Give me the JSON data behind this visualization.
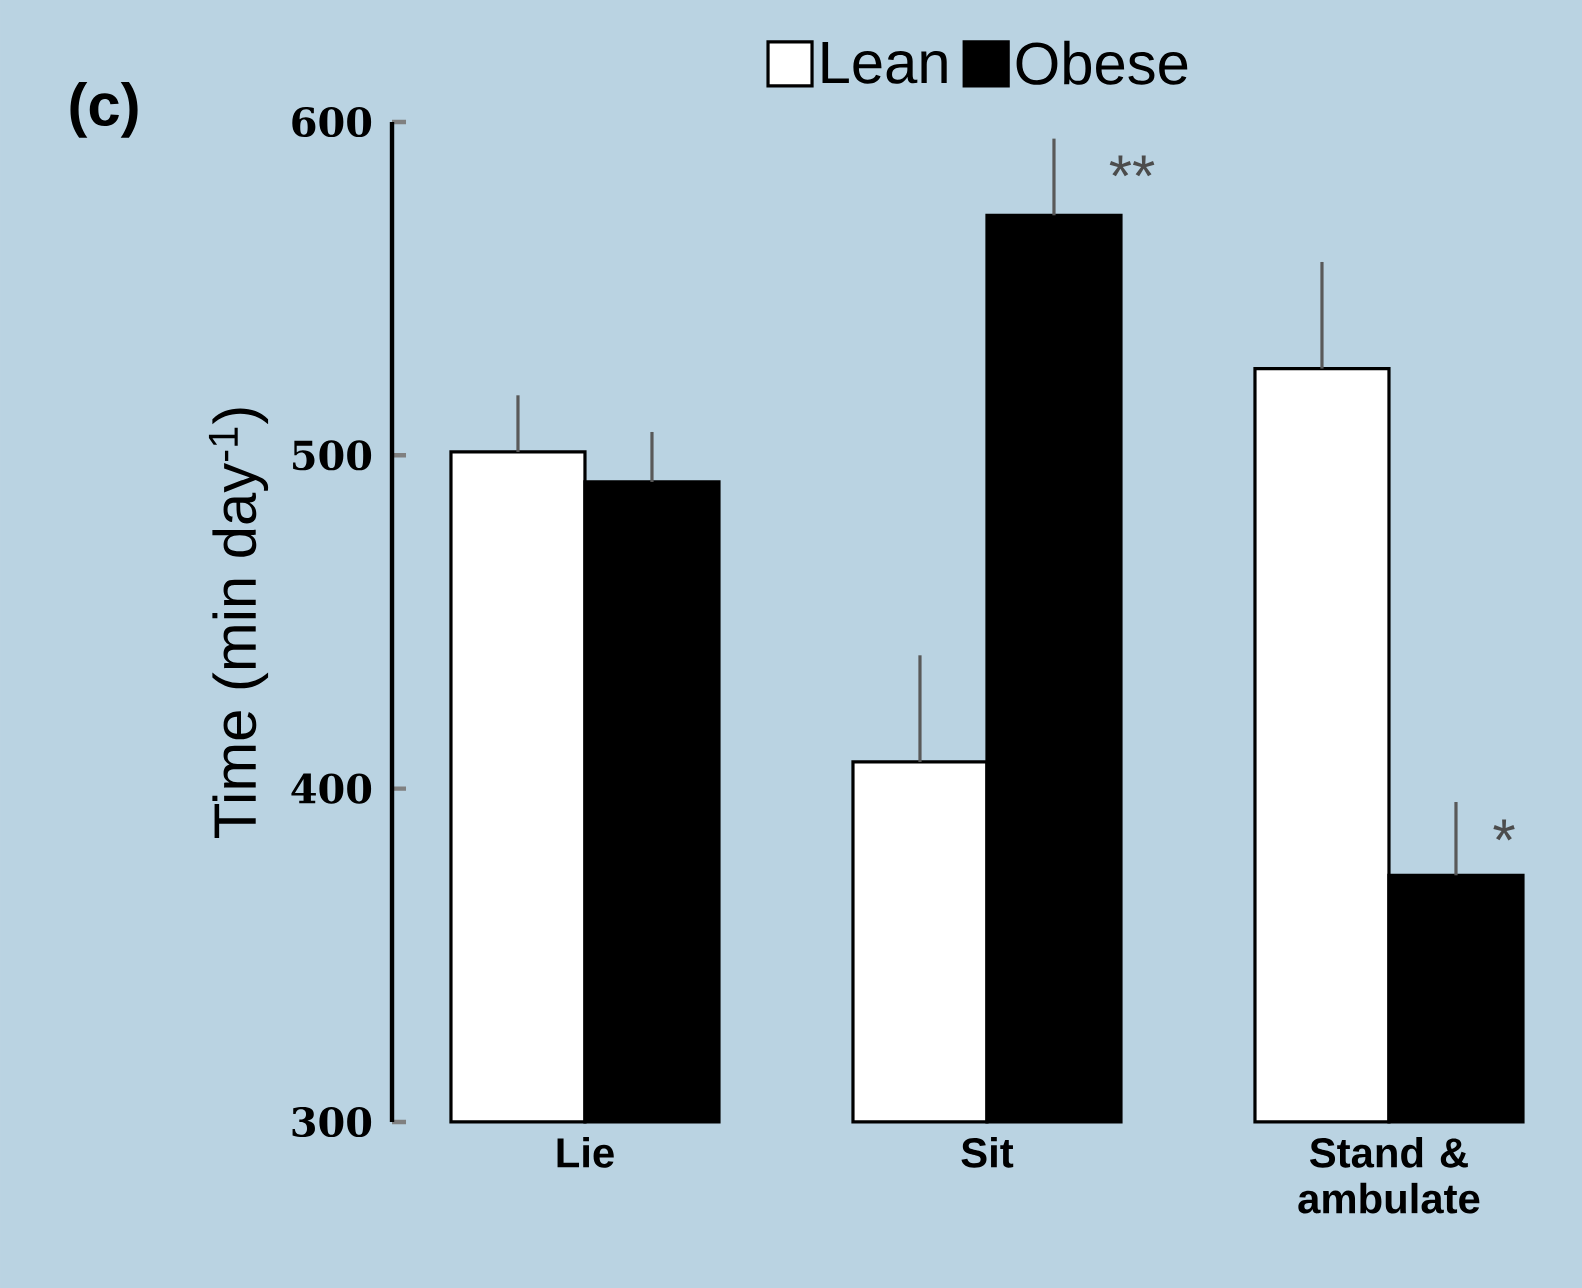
{
  "chart_data": {
    "type": "bar",
    "categories": [
      "Lie",
      "Sit",
      "Stand & ambulate"
    ],
    "series": [
      {
        "name": "Lean",
        "color": "#ffffff",
        "values": [
          501,
          408,
          526
        ],
        "errors": [
          [
            501,
            518
          ],
          [
            408,
            440
          ],
          [
            526,
            558
          ]
        ]
      },
      {
        "name": "Obese",
        "color": "#000000",
        "values": [
          492,
          572,
          374
        ],
        "errors": [
          [
            492,
            507
          ],
          [
            572,
            595
          ],
          [
            374,
            396
          ]
        ]
      }
    ],
    "ylabel": "Time (min day$^{-1}$)",
    "ylim": [
      300,
      600
    ],
    "yticks": [
      300,
      400,
      500,
      600
    ],
    "legend": "top",
    "annotations": [
      "(c)",
      "**",
      "*"
    ]
  }
}
